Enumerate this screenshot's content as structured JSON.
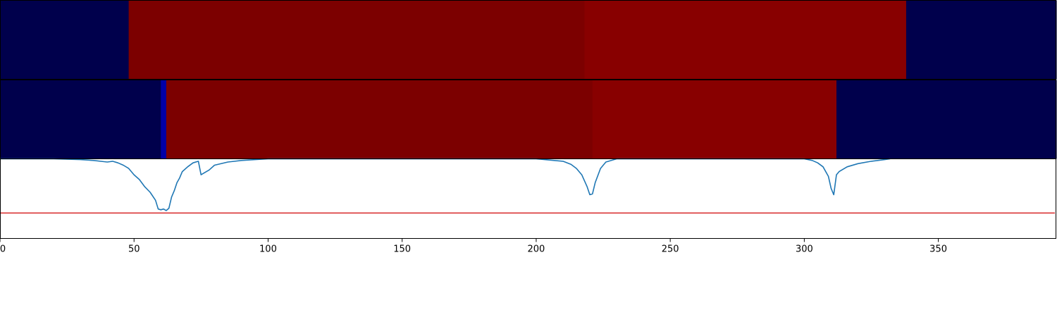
{
  "chart_data": [
    {
      "type": "heatmap",
      "panel": "top",
      "x_range": [
        0,
        394
      ],
      "colormap": "seismic",
      "segments": [
        {
          "x0": 0,
          "x1": 48,
          "color": "#00004c"
        },
        {
          "x0": 48,
          "x1": 218,
          "color": "#7c0000"
        },
        {
          "x0": 218,
          "x1": 338,
          "color": "#880000"
        },
        {
          "x0": 338,
          "x1": 394,
          "color": "#00004c"
        }
      ]
    },
    {
      "type": "heatmap",
      "panel": "middle",
      "x_range": [
        0,
        394
      ],
      "colormap": "seismic",
      "segments": [
        {
          "x0": 0,
          "x1": 60,
          "color": "#00004c"
        },
        {
          "x0": 60,
          "x1": 62,
          "color": "#0000a8"
        },
        {
          "x0": 62,
          "x1": 221,
          "color": "#7c0000"
        },
        {
          "x0": 221,
          "x1": 312,
          "color": "#880000"
        },
        {
          "x0": 312,
          "x1": 394,
          "color": "#00004c"
        }
      ]
    },
    {
      "type": "line",
      "panel": "bottom",
      "xlim": [
        0,
        394
      ],
      "ylim": [
        -1,
        0
      ],
      "xticks": [
        0,
        50,
        100,
        150,
        200,
        250,
        300,
        350
      ],
      "tick_labels": [
        "0",
        "50",
        "100",
        "150",
        "200",
        "250",
        "300",
        "350"
      ],
      "threshold": {
        "y": -0.68,
        "color": "#d62728"
      },
      "series": [
        {
          "color": "#1f77b4",
          "x": [
            0,
            20,
            30,
            35,
            40,
            42,
            44,
            46,
            48,
            50,
            52,
            54,
            56,
            58,
            59,
            60,
            61,
            62,
            63,
            64,
            65,
            66,
            67,
            68,
            70,
            72,
            74,
            75,
            76,
            78,
            80,
            85,
            90,
            100,
            110,
            120,
            200,
            210,
            213,
            215,
            217,
            219,
            220,
            221,
            222,
            224,
            226,
            230,
            240,
            300,
            303,
            305,
            307,
            309,
            310,
            311,
            312,
            313,
            314,
            316,
            320,
            325,
            330,
            332
          ],
          "y": [
            0,
            0,
            -0.01,
            -0.02,
            -0.04,
            -0.03,
            -0.05,
            -0.08,
            -0.12,
            -0.2,
            -0.26,
            -0.35,
            -0.42,
            -0.52,
            -0.63,
            -0.64,
            -0.63,
            -0.65,
            -0.62,
            -0.48,
            -0.4,
            -0.3,
            -0.24,
            -0.16,
            -0.1,
            -0.05,
            -0.03,
            -0.2,
            -0.18,
            -0.14,
            -0.08,
            -0.04,
            -0.02,
            0,
            0,
            0,
            0,
            -0.03,
            -0.07,
            -0.12,
            -0.2,
            -0.35,
            -0.45,
            -0.44,
            -0.3,
            -0.12,
            -0.04,
            0,
            0,
            0,
            -0.02,
            -0.05,
            -0.1,
            -0.22,
            -0.37,
            -0.45,
            -0.2,
            -0.16,
            -0.14,
            -0.1,
            -0.06,
            -0.03,
            -0.01,
            0
          ]
        }
      ]
    }
  ]
}
